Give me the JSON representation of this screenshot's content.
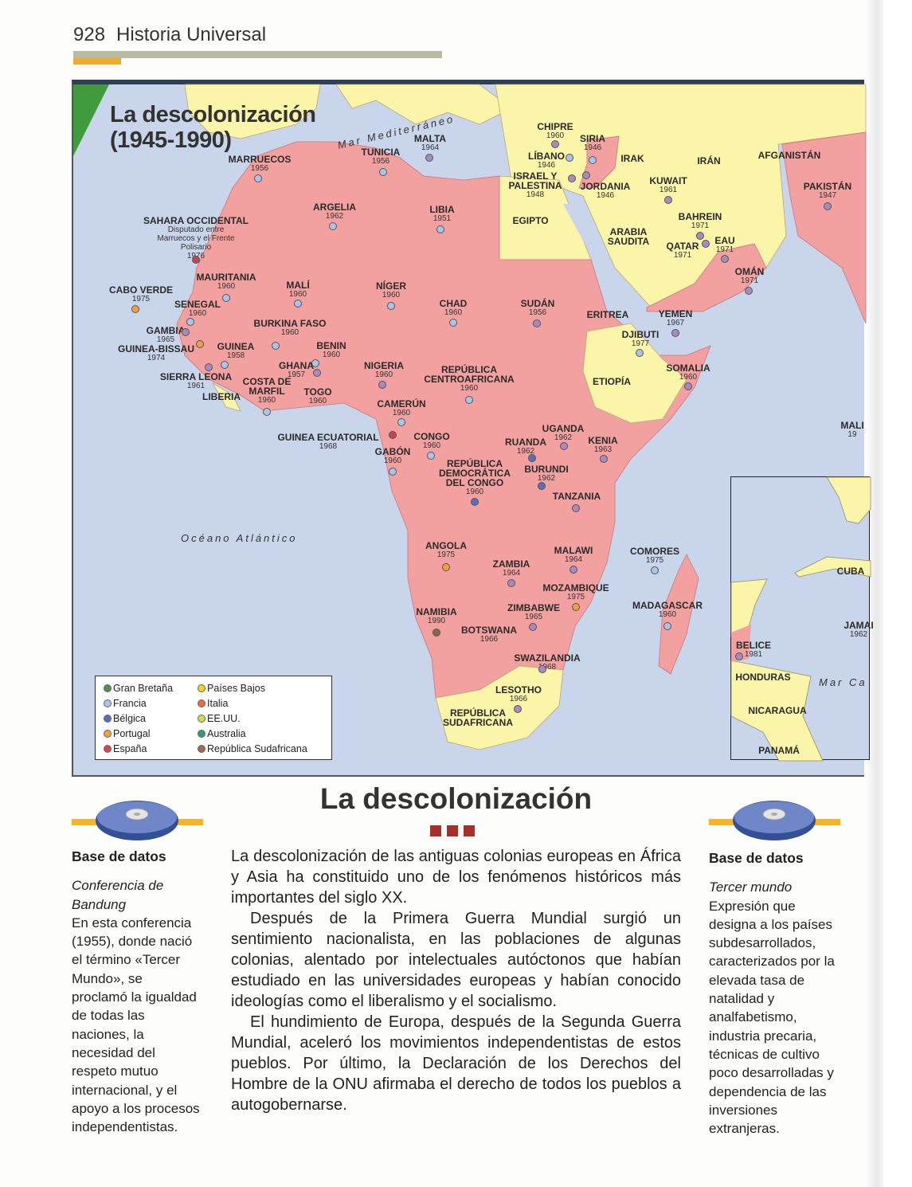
{
  "header": {
    "page_number": "928",
    "book_title": "Historia Universal"
  },
  "map": {
    "title_line1": "La descolonización",
    "title_line2": "(1945-1990)",
    "seas": {
      "mediterraneo": "Mar Mediterráneo",
      "atlantico": "Océano Atlántico",
      "caribe": "Mar Ca"
    },
    "colors": {
      "colonized": "#f3a1a0",
      "independent": "#fbf5a9",
      "sea": "#c9d5ea"
    },
    "legend": [
      {
        "label": "Gran Bretaña",
        "color": "#4f8f4f"
      },
      {
        "label": "Francia",
        "color": "#a9c6ea"
      },
      {
        "label": "Bélgica",
        "color": "#5a6fb8"
      },
      {
        "label": "Portugal",
        "color": "#f0a040"
      },
      {
        "label": "España",
        "color": "#d8434e"
      },
      {
        "label": "Países Bajos",
        "color": "#f4d21e"
      },
      {
        "label": "Italia",
        "color": "#ee6a3a"
      },
      {
        "label": "EE.UU.",
        "color": "#c6df4a"
      },
      {
        "label": "Australia",
        "color": "#2f9e6f"
      },
      {
        "label": "República Sudafricana",
        "color": "#9a6a55"
      }
    ],
    "map_dot_colors": {
      "Gran Bretaña": "#a58bc0",
      "Francia": "#a9c6ea",
      "Bélgica": "#5a6fb8",
      "Portugal": "#f0a040",
      "España": "#c8444e",
      "República Sudafricana": "#8a6550"
    },
    "countries": [
      {
        "name": "MARRUECOS",
        "year": "1956",
        "colonizer": "Francia"
      },
      {
        "name": "TUNICIA",
        "year": "1956",
        "colonizer": "Francia"
      },
      {
        "name": "MALTA",
        "year": "1964",
        "colonizer": "Gran Bretaña"
      },
      {
        "name": "ARGELIA",
        "year": "1962",
        "colonizer": "Francia"
      },
      {
        "name": "LIBIA",
        "year": "1951",
        "colonizer": "Francia"
      },
      {
        "name": "SAHARA OCCIDENTAL",
        "note": "Disputado entre Marruecos y el Frente Polisario",
        "year": "1976",
        "colonizer": "España"
      },
      {
        "name": "MAURITANIA",
        "year": "1960",
        "colonizer": "Francia"
      },
      {
        "name": "MALÍ",
        "year": "1960",
        "colonizer": "Francia"
      },
      {
        "name": "NÍGER",
        "year": "1960",
        "colonizer": "Francia"
      },
      {
        "name": "CHAD",
        "year": "1960",
        "colonizer": "Francia"
      },
      {
        "name": "SUDÁN",
        "year": "1956",
        "colonizer": "Gran Bretaña"
      },
      {
        "name": "CABO VERDE",
        "year": "1975",
        "colonizer": "Portugal"
      },
      {
        "name": "SENEGAL",
        "year": "1960",
        "colonizer": "Francia"
      },
      {
        "name": "GAMBIA",
        "year": "1965",
        "colonizer": "Gran Bretaña"
      },
      {
        "name": "GUINEA-BISSAU",
        "year": "1974",
        "colonizer": "Portugal"
      },
      {
        "name": "GUINEA",
        "year": "1958",
        "colonizer": "Francia"
      },
      {
        "name": "BURKINA FASO",
        "year": "1960",
        "colonizer": "Francia"
      },
      {
        "name": "BENIN",
        "year": "1960",
        "colonizer": "Francia"
      },
      {
        "name": "GHANA",
        "year": "1957",
        "colonizer": "Gran Bretaña"
      },
      {
        "name": "SIERRA LEONA",
        "year": "1961",
        "colonizer": "Gran Bretaña"
      },
      {
        "name": "LIBERIA"
      },
      {
        "name": "COSTA DE MARFIL",
        "year": "1960",
        "colonizer": "Francia"
      },
      {
        "name": "TOGO",
        "year": "1960",
        "colonizer": "Francia"
      },
      {
        "name": "NIGERIA",
        "year": "1960",
        "colonizer": "Gran Bretaña"
      },
      {
        "name": "REPÚBLICA CENTROAFRICANA",
        "year": "1960",
        "colonizer": "Francia"
      },
      {
        "name": "CAMERÚN",
        "year": "1960",
        "colonizer": "Francia"
      },
      {
        "name": "GUINEA ECUATORIAL",
        "year": "1968",
        "colonizer": "España"
      },
      {
        "name": "CONGO",
        "year": "1960",
        "colonizer": "Francia"
      },
      {
        "name": "GABÓN",
        "year": "1960",
        "colonizer": "Francia"
      },
      {
        "name": "REPÚBLICA DEMOCRÁTICA DEL CONGO",
        "year": "1960",
        "colonizer": "Bélgica"
      },
      {
        "name": "UGANDA",
        "year": "1962",
        "colonizer": "Gran Bretaña"
      },
      {
        "name": "RUANDA",
        "year": "1962",
        "colonizer": "Bélgica"
      },
      {
        "name": "KENIA",
        "year": "1963",
        "colonizer": "Gran Bretaña"
      },
      {
        "name": "BURUNDI",
        "year": "1962",
        "colonizer": "Bélgica"
      },
      {
        "name": "TANZANIA",
        "colonizer": "Gran Bretaña"
      },
      {
        "name": "ANGOLA",
        "year": "1975",
        "colonizer": "Portugal"
      },
      {
        "name": "ZAMBIA",
        "year": "1964",
        "colonizer": "Gran Bretaña"
      },
      {
        "name": "MALAWI",
        "year": "1964",
        "colonizer": "Gran Bretaña"
      },
      {
        "name": "MOZAMBIQUE",
        "year": "1975",
        "colonizer": "Portugal"
      },
      {
        "name": "ZIMBABWE",
        "year": "1965",
        "colonizer": "Gran Bretaña"
      },
      {
        "name": "NAMIBIA",
        "year": "1990",
        "colonizer": "República Sudafricana"
      },
      {
        "name": "BOTSWANA",
        "year": "1966"
      },
      {
        "name": "SWAZILANDIA",
        "year": "1968",
        "colonizer": "Gran Bretaña"
      },
      {
        "name": "LESOTHO",
        "year": "1966",
        "colonizer": "Gran Bretaña"
      },
      {
        "name": "REPÚBLICA SUDAFRICANA"
      },
      {
        "name": "COMORES",
        "year": "1975",
        "colonizer": "Francia"
      },
      {
        "name": "MADAGASCAR",
        "year": "1960",
        "colonizer": "Francia"
      },
      {
        "name": "EGIPTO"
      },
      {
        "name": "ETIOPÍA"
      },
      {
        "name": "ERITREA"
      },
      {
        "name": "DJIBUTI",
        "year": "1977",
        "colonizer": "Francia"
      },
      {
        "name": "SOMALIA",
        "year": "1960",
        "colonizer": "Gran Bretaña"
      },
      {
        "name": "YEMEN",
        "year": "1967",
        "colonizer": "Gran Bretaña"
      },
      {
        "name": "OMÁN",
        "year": "1971",
        "colonizer": "Gran Bretaña"
      },
      {
        "name": "CHIPRE",
        "year": "1960",
        "colonizer": "Gran Bretaña"
      },
      {
        "name": "SIRIA",
        "year": "1946",
        "colonizer": "Francia"
      },
      {
        "name": "LÍBANO",
        "year": "1946",
        "colonizer": "Francia"
      },
      {
        "name": "ISRAEL Y PALESTINA",
        "year": "1948",
        "colonizer": "Gran Bretaña"
      },
      {
        "name": "JORDANIA",
        "year": "1946",
        "colonizer": "Gran Bretaña"
      },
      {
        "name": "IRAK"
      },
      {
        "name": "IRÁN"
      },
      {
        "name": "KUWAIT",
        "year": "1961",
        "colonizer": "Gran Bretaña"
      },
      {
        "name": "BAHREIN",
        "year": "1971",
        "colonizer": "Gran Bretaña"
      },
      {
        "name": "QATAR",
        "year": "1971",
        "colonizer": "Gran Bretaña"
      },
      {
        "name": "EAU",
        "year": "1971",
        "colonizer": "Gran Bretaña"
      },
      {
        "name": "ARABIA SAUDITA"
      },
      {
        "name": "AFGANISTÁN"
      },
      {
        "name": "PAKISTÁN",
        "year": "1947",
        "colonizer": "Gran Bretaña"
      },
      {
        "name": "MALI",
        "year": "19"
      }
    ],
    "inset": [
      {
        "name": "CUBA"
      },
      {
        "name": "JAMAI",
        "year": "1962"
      },
      {
        "name": "BELICE",
        "year": "1981",
        "colonizer": "Gran Bretaña"
      },
      {
        "name": "HONDURAS"
      },
      {
        "name": "NICARAGUA"
      },
      {
        "name": "PANAMÁ"
      }
    ]
  },
  "article": {
    "title": "La descolonización",
    "paragraphs": [
      "La descolonización de las antiguas colonias europeas en África y Asia ha constituido uno de los fenómenos históricos más importantes del siglo XX.",
      "Después de la Primera Guerra Mundial surgió un sentimiento nacionalista, en las poblaciones de algunas colonias, alentado por intelectuales autóctonos que habían estudiado en las universidades europeas y habían conocido ideologías como el liberalismo y el socialismo.",
      "El hundimiento de Europa, después de la Segunda Guerra Mundial, aceleró los movimientos independentistas de estos pueblos. Por último, la Declaración de los Derechos del Hombre de la ONU afirmaba el derecho de todos los pueblos a autogobernarse."
    ]
  },
  "sidebar_left": {
    "heading": "Base de datos",
    "term": "Conferencia de Bandung",
    "text": "En esta conferencia (1955), donde nació el término «Tercer Mundo», se proclamó la igualdad de todas las naciones, la necesidad del respeto mutuo internacional, y el apoyo a los procesos independentistas."
  },
  "sidebar_right": {
    "heading": "Base de datos",
    "term": "Tercer mundo",
    "text": "Expresión que designa a los países subdesarrollados, caracterizados por la elevada tasa de natalidad y analfabetismo, industria precaria, técnicas de cultivo poco desarrolladas y dependencia de las inversiones extranjeras."
  }
}
